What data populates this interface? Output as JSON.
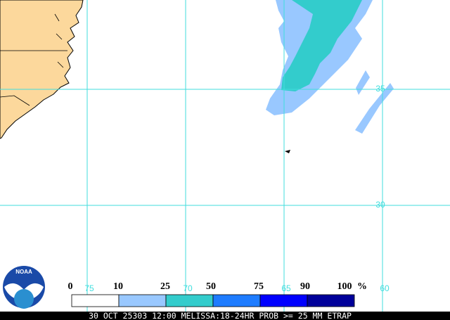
{
  "map": {
    "grid": {
      "latitudes": [
        {
          "label": "35"
        },
        {
          "label": "30"
        }
      ],
      "longitudes": [
        {
          "label": "75"
        },
        {
          "label": "70"
        },
        {
          "label": "65"
        },
        {
          "label": "60"
        }
      ],
      "color": "#40dede"
    },
    "logo": {
      "text": "NOAA"
    },
    "legend": {
      "ticks": [
        0,
        10,
        25,
        50,
        75,
        90,
        100
      ],
      "unit": "%",
      "colors": [
        "#ffffff",
        "#99c8ff",
        "#33cccc",
        "#1e7cff",
        "#0000ff",
        "#00009a"
      ]
    },
    "footer": {
      "text": "30 OCT 25303 12:00 MELISSA:18-24HR PROB >= 25 MM ETRAP"
    }
  }
}
